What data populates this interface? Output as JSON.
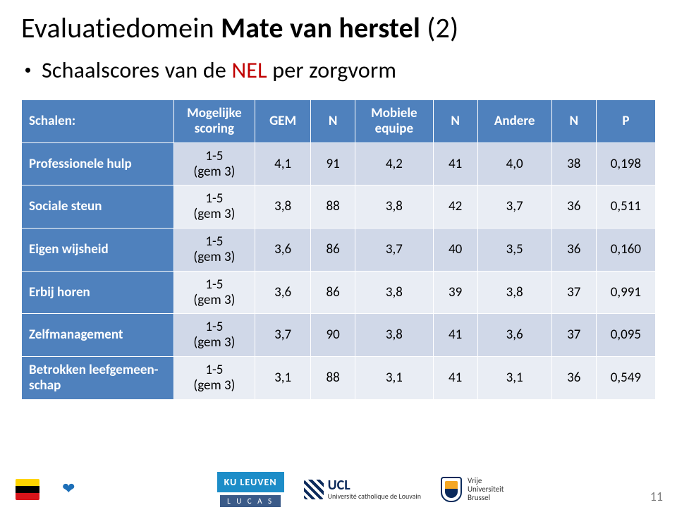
{
  "title": {
    "pre": "Evaluatiedomein ",
    "bold": "Mate van herstel",
    "suffix": " (2)"
  },
  "subtitle": {
    "pre": "Schaalscores van de ",
    "accent": "NEL",
    "post": " per zorgvorm"
  },
  "table": {
    "header": {
      "schalen": "Schalen:",
      "scoring": "Mogelijke\nscoring",
      "gem": "GEM",
      "n1": "N",
      "mobiele": "Mobiele\nequipe",
      "n2": "N",
      "andere": "Andere",
      "n3": "N",
      "p": "P"
    },
    "rows": [
      {
        "label": "Professionele hulp",
        "scoring": "1-5\n(gem 3)",
        "gem": "4,1",
        "n1": "91",
        "me": "4,2",
        "n2": "41",
        "and": "4,0",
        "n3": "38",
        "p": "0,198"
      },
      {
        "label": "Sociale steun",
        "scoring": "1-5\n(gem 3)",
        "gem": "3,8",
        "n1": "88",
        "me": "3,8",
        "n2": "42",
        "and": "3,7",
        "n3": "36",
        "p": "0,511"
      },
      {
        "label": "Eigen wijsheid",
        "scoring": "1-5\n(gem 3)",
        "gem": "3,6",
        "n1": "86",
        "me": "3,7",
        "n2": "40",
        "and": "3,5",
        "n3": "36",
        "p": "0,160"
      },
      {
        "label": "Erbij horen",
        "scoring": "1-5\n(gem 3)",
        "gem": "3,6",
        "n1": "86",
        "me": "3,8",
        "n2": "39",
        "and": "3,8",
        "n3": "37",
        "p": "0,991"
      },
      {
        "label": "Zelfmanagement",
        "scoring": "1-5\n(gem 3)",
        "gem": "3,7",
        "n1": "90",
        "me": "3,8",
        "n2": "41",
        "and": "3,6",
        "n3": "37",
        "p": "0,095"
      },
      {
        "label": "Betrokken leefgemeen-schap",
        "scoring": "1-5\n(gem 3)",
        "gem": "3,1",
        "n1": "88",
        "me": "3,1",
        "n2": "41",
        "and": "3,1",
        "n3": "36",
        "p": "0,549"
      }
    ],
    "colors": {
      "header_bg": "#4f81bd",
      "header_fg": "#ffffff",
      "band_a": "#d0d8e8",
      "band_b": "#e9edf4",
      "border": "#ffffff"
    }
  },
  "footer": {
    "kul": "KU LEUVEN",
    "lucas": "L U C A S",
    "ucl_big": "UCL",
    "ucl_small": "Université catholique de Louvain",
    "vub_l1": "Vrije",
    "vub_l2": "Universiteit",
    "vub_l3": "Brussel"
  },
  "page_number": "11"
}
